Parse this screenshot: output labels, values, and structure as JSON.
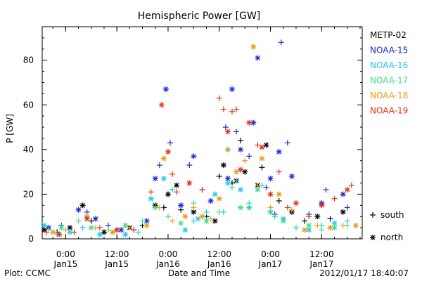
{
  "chart_data": {
    "type": "scatter",
    "title": "Hemispheric Power [GW]",
    "ylabel": "P [GW]",
    "xlabel": "Date and Time",
    "ylim": [
      0,
      95
    ],
    "yticks": [
      0,
      20,
      40,
      60,
      80
    ],
    "xlim": [
      "2012-01-14 18:30",
      "2012-01-17 21:30"
    ],
    "xticks": [
      {
        "time": "2012-01-15 00:00",
        "line1": "0:00",
        "line2": "Jan15"
      },
      {
        "time": "2012-01-15 12:00",
        "line1": "12:00",
        "line2": "Jan15"
      },
      {
        "time": "2012-01-16 00:00",
        "line1": "0:00",
        "line2": "Jan16"
      },
      {
        "time": "2012-01-16 12:00",
        "line1": "12:00",
        "line2": "Jan16"
      },
      {
        "time": "2012-01-17 00:00",
        "line1": "0:00",
        "line2": "Jan17"
      },
      {
        "time": "2012-01-17 12:00",
        "line1": "12:00",
        "line2": "Jan17"
      }
    ],
    "legend": {
      "placement": "right",
      "series": [
        {
          "name": "METP-02",
          "color": "#000000"
        },
        {
          "name": "NOAA-15",
          "color": "#1a2ad6"
        },
        {
          "name": "NOAA-16",
          "color": "#22c8e8"
        },
        {
          "name": "NOAA-17",
          "color": "#3ee08a"
        },
        {
          "name": "NOAA-18",
          "color": "#e89a1c"
        },
        {
          "name": "NOAA-19",
          "color": "#e0321c"
        }
      ],
      "markers": [
        {
          "symbol": "+",
          "label": "south"
        },
        {
          "symbol": "*",
          "label": "north"
        }
      ]
    },
    "footer_left": "Plot: CCMC",
    "footer_right": "2012/01/17 18:40:07",
    "series": [
      {
        "name": "METP-02",
        "color": "#000000",
        "points": [
          [
            "2012-01-14 19:00",
            4,
            "n"
          ],
          [
            "2012-01-14 22:00",
            3,
            "s"
          ],
          [
            "2012-01-15 01:00",
            5,
            "n"
          ],
          [
            "2012-01-15 04:00",
            15,
            "n"
          ],
          [
            "2012-01-15 06:00",
            8,
            "s"
          ],
          [
            "2012-01-15 09:00",
            3,
            "n"
          ],
          [
            "2012-01-15 12:00",
            4,
            "s"
          ],
          [
            "2012-01-15 15:00",
            5,
            "n"
          ],
          [
            "2012-01-15 18:00",
            6,
            "s"
          ],
          [
            "2012-01-15 21:00",
            15,
            "n"
          ],
          [
            "2012-01-15 23:00",
            14,
            "s"
          ],
          [
            "2012-01-16 00:00",
            20,
            "n"
          ],
          [
            "2012-01-16 02:00",
            24,
            "n"
          ],
          [
            "2012-01-16 03:00",
            13,
            "s"
          ],
          [
            "2012-01-16 06:00",
            12,
            "n"
          ],
          [
            "2012-01-16 09:00",
            10,
            "s"
          ],
          [
            "2012-01-16 11:00",
            8,
            "n"
          ],
          [
            "2012-01-16 12:00",
            28,
            "s"
          ],
          [
            "2012-01-16 13:00",
            33,
            "n"
          ],
          [
            "2012-01-16 15:00",
            25,
            "s"
          ],
          [
            "2012-01-16 16:00",
            26,
            "n"
          ],
          [
            "2012-01-16 17:00",
            44,
            "s"
          ],
          [
            "2012-01-16 18:00",
            30,
            "n"
          ],
          [
            "2012-01-16 21:00",
            24,
            "n"
          ],
          [
            "2012-01-16 22:00",
            32,
            "s"
          ],
          [
            "2012-01-16 23:00",
            42,
            "n"
          ],
          [
            "2012-01-17 02:00",
            17,
            "s"
          ],
          [
            "2012-01-17 05:00",
            12,
            "n"
          ],
          [
            "2012-01-17 08:00",
            8,
            "s"
          ],
          [
            "2012-01-17 11:00",
            10,
            "n"
          ],
          [
            "2012-01-17 14:00",
            9,
            "s"
          ],
          [
            "2012-01-17 17:00",
            12,
            "n"
          ]
        ]
      },
      {
        "name": "NOAA-15",
        "color": "#1a2ad6",
        "points": [
          [
            "2012-01-14 20:00",
            5,
            "n"
          ],
          [
            "2012-01-14 23:00",
            6,
            "s"
          ],
          [
            "2012-01-15 03:00",
            13,
            "n"
          ],
          [
            "2012-01-15 05:00",
            12,
            "s"
          ],
          [
            "2012-01-15 07:00",
            9,
            "n"
          ],
          [
            "2012-01-15 10:00",
            6,
            "s"
          ],
          [
            "2012-01-15 13:00",
            4,
            "n"
          ],
          [
            "2012-01-15 16:00",
            4,
            "s"
          ],
          [
            "2012-01-15 19:00",
            8,
            "n"
          ],
          [
            "2012-01-15 21:00",
            27,
            "n"
          ],
          [
            "2012-01-15 22:00",
            33,
            "s"
          ],
          [
            "2012-01-15 23:30",
            67,
            "n"
          ],
          [
            "2012-01-16 00:30",
            43,
            "s"
          ],
          [
            "2012-01-16 03:00",
            15,
            "n"
          ],
          [
            "2012-01-16 05:00",
            33,
            "s"
          ],
          [
            "2012-01-16 06:00",
            37,
            "n"
          ],
          [
            "2012-01-16 08:00",
            22,
            "s"
          ],
          [
            "2012-01-16 10:00",
            17,
            "n"
          ],
          [
            "2012-01-16 13:30",
            50,
            "s"
          ],
          [
            "2012-01-16 14:00",
            27,
            "n"
          ],
          [
            "2012-01-16 15:00",
            67,
            "n"
          ],
          [
            "2012-01-16 16:00",
            48,
            "s"
          ],
          [
            "2012-01-16 17:00",
            40,
            "n"
          ],
          [
            "2012-01-16 19:00",
            37,
            "s"
          ],
          [
            "2012-01-16 20:00",
            52,
            "n"
          ],
          [
            "2012-01-16 21:00",
            81,
            "n"
          ],
          [
            "2012-01-16 23:00",
            23,
            "s"
          ],
          [
            "2012-01-17 00:00",
            27,
            "n"
          ],
          [
            "2012-01-17 01:00",
            11,
            "s"
          ],
          [
            "2012-01-17 02:00",
            39,
            "n"
          ],
          [
            "2012-01-17 02:30",
            88,
            "s"
          ],
          [
            "2012-01-17 04:00",
            43,
            "s"
          ],
          [
            "2012-01-17 05:00",
            28,
            "n"
          ],
          [
            "2012-01-17 09:00",
            11,
            "s"
          ],
          [
            "2012-01-17 12:00",
            16,
            "n"
          ],
          [
            "2012-01-17 13:00",
            22,
            "s"
          ],
          [
            "2012-01-17 17:00",
            20,
            "n"
          ],
          [
            "2012-01-17 18:00",
            14,
            "s"
          ]
        ]
      },
      {
        "name": "NOAA-16",
        "color": "#22c8e8",
        "points": [
          [
            "2012-01-14 19:00",
            6,
            "n"
          ],
          [
            "2012-01-14 22:00",
            2,
            "s"
          ],
          [
            "2012-01-15 01:00",
            3,
            "n"
          ],
          [
            "2012-01-15 04:00",
            5,
            "s"
          ],
          [
            "2012-01-15 08:00",
            2,
            "n"
          ],
          [
            "2012-01-15 11:00",
            3,
            "s"
          ],
          [
            "2012-01-15 14:00",
            2,
            "n"
          ],
          [
            "2012-01-15 17:00",
            3,
            "s"
          ],
          [
            "2012-01-15 20:00",
            18,
            "n"
          ],
          [
            "2012-01-15 23:00",
            27,
            "n"
          ],
          [
            "2012-01-16 01:00",
            22,
            "s"
          ],
          [
            "2012-01-16 04:00",
            4,
            "n"
          ],
          [
            "2012-01-16 06:00",
            8,
            "s"
          ],
          [
            "2012-01-16 07:00",
            9,
            "n"
          ],
          [
            "2012-01-16 09:00",
            12,
            "s"
          ],
          [
            "2012-01-16 11:00",
            20,
            "n"
          ],
          [
            "2012-01-16 13:00",
            12,
            "s"
          ],
          [
            "2012-01-16 14:00",
            25,
            "n"
          ],
          [
            "2012-01-16 16:00",
            26,
            "s"
          ],
          [
            "2012-01-16 17:00",
            22,
            "n"
          ],
          [
            "2012-01-16 19:00",
            14,
            "n"
          ],
          [
            "2012-01-16 22:00",
            24,
            "s"
          ],
          [
            "2012-01-17 00:00",
            12,
            "n"
          ],
          [
            "2012-01-17 01:00",
            10,
            "s"
          ],
          [
            "2012-01-17 03:00",
            9,
            "n"
          ],
          [
            "2012-01-17 06:00",
            5,
            "s"
          ],
          [
            "2012-01-17 09:00",
            4,
            "n"
          ],
          [
            "2012-01-17 12:00",
            6,
            "s"
          ],
          [
            "2012-01-17 15:00",
            7,
            "n"
          ],
          [
            "2012-01-17 18:00",
            8,
            "s"
          ]
        ]
      },
      {
        "name": "NOAA-17",
        "color": "#3ee08a",
        "points": [
          [
            "2012-01-14 20:00",
            4,
            "s"
          ],
          [
            "2012-01-14 23:00",
            5,
            "n"
          ],
          [
            "2012-01-15 03:00",
            8,
            "s"
          ],
          [
            "2012-01-15 06:00",
            5,
            "n"
          ],
          [
            "2012-01-15 10:00",
            4,
            "s"
          ],
          [
            "2012-01-15 14:00",
            6,
            "n"
          ],
          [
            "2012-01-15 18:00",
            8,
            "s"
          ],
          [
            "2012-01-15 21:00",
            14,
            "n"
          ],
          [
            "2012-01-16 00:00",
            10,
            "s"
          ],
          [
            "2012-01-16 03:00",
            7,
            "n"
          ],
          [
            "2012-01-16 06:00",
            16,
            "s"
          ],
          [
            "2012-01-16 09:00",
            8,
            "n"
          ],
          [
            "2012-01-16 12:00",
            12,
            "s"
          ],
          [
            "2012-01-16 14:00",
            40,
            "n"
          ],
          [
            "2012-01-16 15:00",
            23,
            "s"
          ],
          [
            "2012-01-16 17:00",
            14,
            "n"
          ],
          [
            "2012-01-16 19:00",
            16,
            "s"
          ],
          [
            "2012-01-16 21:00",
            22,
            "n"
          ],
          [
            "2012-01-17 00:00",
            12,
            "s"
          ],
          [
            "2012-01-17 03:00",
            8,
            "n"
          ],
          [
            "2012-01-17 06:00",
            5,
            "s"
          ],
          [
            "2012-01-17 09:00",
            6,
            "n"
          ],
          [
            "2012-01-17 12:00",
            4,
            "s"
          ],
          [
            "2012-01-17 15:00",
            5,
            "n"
          ],
          [
            "2012-01-17 18:00",
            6,
            "s"
          ]
        ]
      },
      {
        "name": "NOAA-18",
        "color": "#e89a1c",
        "points": [
          [
            "2012-01-14 21:00",
            3,
            "n"
          ],
          [
            "2012-01-15 00:00",
            4,
            "s"
          ],
          [
            "2012-01-15 05:00",
            10,
            "n"
          ],
          [
            "2012-01-15 07:00",
            5,
            "s"
          ],
          [
            "2012-01-15 11:00",
            3,
            "n"
          ],
          [
            "2012-01-15 15:00",
            5,
            "s"
          ],
          [
            "2012-01-15 19:00",
            6,
            "n"
          ],
          [
            "2012-01-15 22:00",
            14,
            "s"
          ],
          [
            "2012-01-15 23:00",
            36,
            "n"
          ],
          [
            "2012-01-16 01:00",
            8,
            "s"
          ],
          [
            "2012-01-16 04:00",
            10,
            "n"
          ],
          [
            "2012-01-16 06:00",
            14,
            "s"
          ],
          [
            "2012-01-16 08:00",
            10,
            "n"
          ],
          [
            "2012-01-16 10:00",
            9,
            "s"
          ],
          [
            "2012-01-16 12:00",
            18,
            "n"
          ],
          [
            "2012-01-16 14:00",
            40,
            "s"
          ],
          [
            "2012-01-16 16:00",
            30,
            "n"
          ],
          [
            "2012-01-16 18:00",
            35,
            "s"
          ],
          [
            "2012-01-16 20:00",
            86,
            "n"
          ],
          [
            "2012-01-16 21:00",
            24,
            "s"
          ],
          [
            "2012-01-16 22:00",
            36,
            "n"
          ],
          [
            "2012-01-17 00:00",
            14,
            "s"
          ],
          [
            "2012-01-17 02:00",
            20,
            "n"
          ],
          [
            "2012-01-17 05:00",
            13,
            "s"
          ],
          [
            "2012-01-17 08:00",
            4,
            "n"
          ],
          [
            "2012-01-17 11:00",
            6,
            "s"
          ],
          [
            "2012-01-17 14:00",
            5,
            "n"
          ],
          [
            "2012-01-17 17:00",
            6,
            "s"
          ],
          [
            "2012-01-17 20:00",
            6,
            "n"
          ]
        ]
      },
      {
        "name": "NOAA-19",
        "color": "#e0321c",
        "points": [
          [
            "2012-01-14 19:30",
            3,
            "s"
          ],
          [
            "2012-01-14 22:30",
            2,
            "n"
          ],
          [
            "2012-01-15 02:00",
            3,
            "s"
          ],
          [
            "2012-01-15 05:00",
            9,
            "n"
          ],
          [
            "2012-01-15 08:00",
            5,
            "s"
          ],
          [
            "2012-01-15 12:00",
            4,
            "n"
          ],
          [
            "2012-01-15 16:00",
            4,
            "s"
          ],
          [
            "2012-01-15 20:00",
            21,
            "s"
          ],
          [
            "2012-01-15 22:30",
            60,
            "n"
          ],
          [
            "2012-01-16 00:00",
            39,
            "n"
          ],
          [
            "2012-01-16 01:00",
            29,
            "s"
          ],
          [
            "2012-01-16 02:00",
            21,
            "s"
          ],
          [
            "2012-01-16 05:00",
            25,
            "n"
          ],
          [
            "2012-01-16 08:00",
            22,
            "s"
          ],
          [
            "2012-01-16 12:00",
            63,
            "s"
          ],
          [
            "2012-01-16 13:00",
            58,
            "s"
          ],
          [
            "2012-01-16 14:00",
            48,
            "n"
          ],
          [
            "2012-01-16 15:00",
            57,
            "s"
          ],
          [
            "2012-01-16 16:00",
            58,
            "s"
          ],
          [
            "2012-01-16 17:00",
            31,
            "n"
          ],
          [
            "2012-01-16 19:00",
            52,
            "n"
          ],
          [
            "2012-01-16 21:00",
            42,
            "s"
          ],
          [
            "2012-01-16 22:00",
            41,
            "n"
          ],
          [
            "2012-01-17 00:00",
            20,
            "n"
          ],
          [
            "2012-01-17 02:00",
            30,
            "s"
          ],
          [
            "2012-01-17 04:00",
            14,
            "s"
          ],
          [
            "2012-01-17 06:00",
            16,
            "n"
          ],
          [
            "2012-01-17 09:00",
            10,
            "s"
          ],
          [
            "2012-01-17 12:00",
            15,
            "n"
          ],
          [
            "2012-01-17 15:00",
            18,
            "s"
          ],
          [
            "2012-01-17 18:00",
            22,
            "n"
          ],
          [
            "2012-01-17 19:00",
            24,
            "s"
          ]
        ]
      }
    ]
  }
}
